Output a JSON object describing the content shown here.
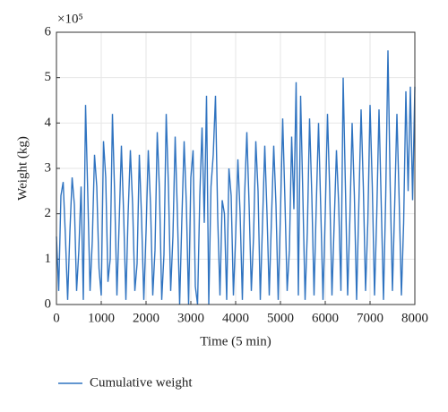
{
  "chart_data": {
    "type": "line",
    "xlabel": "Time (5 min)",
    "ylabel": "Weight (kg)",
    "y_scale_label": "×10⁵",
    "x": [
      0,
      50,
      100,
      150,
      200,
      250,
      300,
      350,
      400,
      450,
      500,
      550,
      600,
      650,
      700,
      750,
      800,
      850,
      900,
      950,
      1000,
      1050,
      1100,
      1150,
      1200,
      1250,
      1300,
      1350,
      1400,
      1450,
      1500,
      1550,
      1600,
      1650,
      1700,
      1750,
      1800,
      1850,
      1900,
      1950,
      2000,
      2050,
      2100,
      2150,
      2200,
      2250,
      2300,
      2350,
      2400,
      2450,
      2500,
      2550,
      2600,
      2650,
      2700,
      2750,
      2800,
      2850,
      2900,
      2950,
      3000,
      3050,
      3100,
      3150,
      3200,
      3250,
      3300,
      3350,
      3400,
      3450,
      3500,
      3550,
      3600,
      3650,
      3700,
      3750,
      3800,
      3850,
      3900,
      3950,
      4000,
      4050,
      4100,
      4150,
      4200,
      4250,
      4300,
      4350,
      4400,
      4450,
      4500,
      4550,
      4600,
      4650,
      4700,
      4750,
      4800,
      4850,
      4900,
      4950,
      5000,
      5050,
      5100,
      5150,
      5200,
      5250,
      5300,
      5350,
      5400,
      5450,
      5500,
      5550,
      5600,
      5650,
      5700,
      5750,
      5800,
      5850,
      5900,
      5950,
      6000,
      6050,
      6100,
      6150,
      6200,
      6250,
      6300,
      6350,
      6400,
      6450,
      6500,
      6550,
      6600,
      6650,
      6700,
      6750,
      6800,
      6850,
      6900,
      6950,
      7000,
      7050,
      7100,
      7150,
      7200,
      7250,
      7300,
      7350,
      7400,
      7450,
      7500,
      7550,
      7600,
      7650,
      7700,
      7750,
      7800,
      7850,
      7900,
      7950,
      8000
    ],
    "series": [
      {
        "name": "Cumulative weight",
        "color": "#2f73c0",
        "values": [
          1.5,
          0.3,
          2.4,
          2.7,
          1.5,
          0.1,
          1.6,
          2.8,
          2.2,
          0.3,
          1.2,
          2.6,
          0.1,
          4.4,
          2.4,
          0.3,
          1.4,
          3.3,
          2.6,
          0.8,
          0.2,
          3.6,
          2.8,
          0.5,
          1.0,
          4.2,
          2.4,
          0.2,
          1.8,
          3.5,
          2.0,
          0.1,
          2.0,
          3.4,
          2.2,
          0.3,
          0.9,
          3.3,
          1.9,
          0.1,
          1.6,
          3.4,
          2.2,
          0.2,
          1.2,
          3.8,
          2.5,
          0.1,
          1.1,
          4.2,
          2.6,
          0.3,
          1.5,
          3.7,
          2.0,
          0.0,
          1.9,
          3.6,
          2.2,
          0.0,
          2.8,
          3.4,
          0.4,
          0.0,
          2.4,
          3.9,
          1.8,
          4.6,
          0.0,
          2.6,
          3.3,
          4.6,
          1.9,
          0.2,
          2.3,
          2.0,
          0.1,
          3.0,
          2.4,
          0.2,
          1.5,
          3.2,
          2.0,
          0.1,
          2.4,
          3.8,
          2.2,
          0.3,
          1.5,
          3.6,
          2.5,
          0.1,
          1.8,
          3.5,
          2.0,
          0.2,
          1.9,
          3.5,
          2.2,
          0.1,
          2.0,
          4.1,
          2.3,
          0.3,
          1.2,
          3.7,
          2.1,
          4.9,
          0.2,
          4.6,
          2.4,
          0.1,
          1.6,
          4.1,
          2.4,
          0.2,
          2.2,
          4.0,
          2.1,
          0.1,
          2.0,
          4.2,
          2.5,
          0.2,
          1.8,
          3.4,
          2.2,
          0.3,
          5.0,
          2.6,
          0.2,
          1.9,
          4.0,
          2.4,
          0.1,
          2.2,
          4.3,
          2.6,
          0.3,
          1.8,
          4.4,
          2.6,
          0.2,
          2.0,
          4.3,
          2.2,
          0.1,
          2.4,
          5.6,
          2.6,
          0.3,
          2.2,
          4.2,
          2.3,
          0.2,
          1.8,
          4.7,
          2.5,
          4.8,
          2.3,
          4.8
        ]
      }
    ],
    "xlim": [
      0,
      8000
    ],
    "xticks": [
      0,
      1000,
      2000,
      3000,
      4000,
      5000,
      6000,
      7000,
      8000
    ],
    "ylim": [
      0,
      6
    ],
    "yticks": [
      0,
      1,
      2,
      3,
      4,
      5,
      6
    ],
    "grid": true
  }
}
